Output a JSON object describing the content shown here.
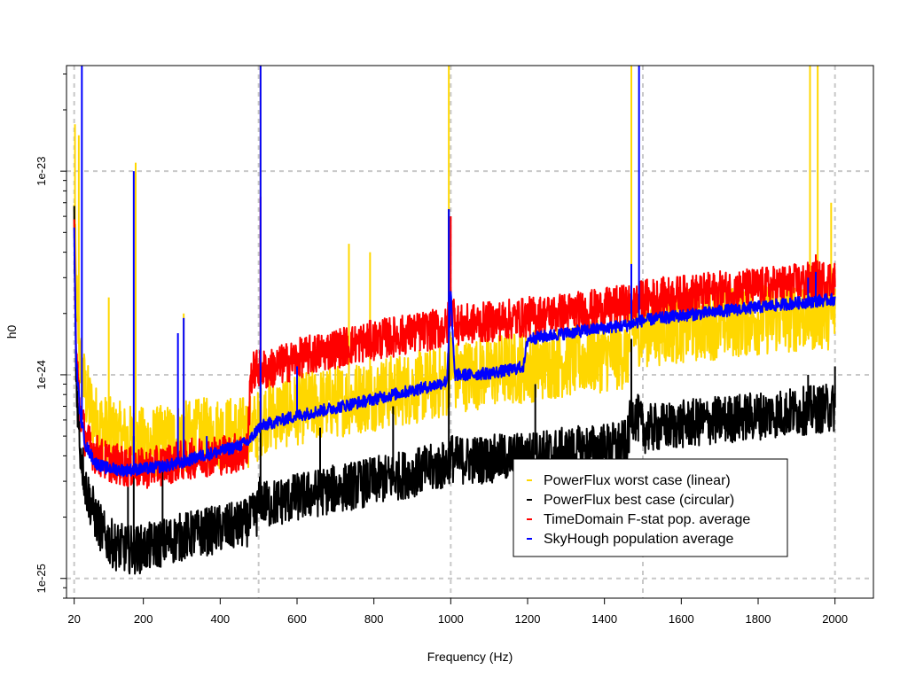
{
  "chart_data": {
    "type": "line",
    "title": "",
    "xlabel": "Frequency (Hz)",
    "ylabel": "h0",
    "xlim": [
      0,
      2100
    ],
    "ylim": [
      8e-26,
      3.3e-23
    ],
    "yscale": "log",
    "grid": true,
    "legend_position": "bottom-right",
    "x_ticks": [
      20,
      200,
      400,
      600,
      800,
      1000,
      1200,
      1400,
      1600,
      1800,
      2000
    ],
    "x_tick_labels": [
      "20",
      "200",
      "400",
      "600",
      "800",
      "1000",
      "1200",
      "1400",
      "1600",
      "1800",
      "2000"
    ],
    "y_ticks": [
      1e-25,
      1e-24,
      1e-23
    ],
    "y_tick_labels": [
      "1e-25",
      "1e-24",
      "1e-23"
    ],
    "x_grid": [
      20,
      500,
      1000,
      1500,
      2000
    ],
    "series": [
      {
        "name": "PowerFlux worst case (linear)",
        "color": "#FFD700",
        "x": [
          20,
          25,
          35,
          50,
          75,
          100,
          150,
          200,
          250,
          300,
          350,
          400,
          450,
          475,
          500,
          510,
          600,
          700,
          800,
          900,
          990,
          1000,
          1010,
          1100,
          1200,
          1300,
          1400,
          1460,
          1470,
          1500,
          1600,
          1700,
          1800,
          1900,
          2000
        ],
        "y": [
          6e-24,
          2.6e-24,
          1.2e-24,
          8e-25,
          6e-25,
          5.3e-25,
          4.8e-25,
          4.6e-25,
          4.7e-25,
          4.9e-25,
          5.1e-25,
          5.2e-25,
          5.2e-25,
          5.3e-25,
          5.6e-25,
          6.2e-25,
          6.8e-25,
          7.4e-25,
          8e-25,
          8.6e-25,
          9.2e-25,
          1.2e-24,
          9.8e-25,
          1.04e-24,
          1.1e-24,
          1.17e-24,
          1.24e-24,
          1.28e-24,
          1.7e-24,
          1.65e-24,
          1.72e-24,
          1.8e-24,
          1.88e-24,
          1.95e-24,
          2.02e-24
        ],
        "spikes": [
          [
            22,
            1.7e-23
          ],
          [
            32,
            1.5e-23
          ],
          [
            110,
            2.4e-24
          ],
          [
            180,
            1.1e-23
          ],
          [
            305,
            2e-24
          ],
          [
            505,
            3.3e-23
          ],
          [
            735,
            4.4e-24
          ],
          [
            790,
            4e-24
          ],
          [
            995,
            3.3e-23
          ],
          [
            1470,
            3.3e-23
          ],
          [
            1935,
            3.3e-23
          ],
          [
            1955,
            3.3e-23
          ],
          [
            1990,
            7e-24
          ]
        ]
      },
      {
        "name": "PowerFlux best case (circular)",
        "color": "#000000",
        "x": [
          20,
          25,
          35,
          50,
          75,
          100,
          125,
          150,
          175,
          200,
          250,
          300,
          350,
          400,
          450,
          475,
          495,
          505,
          520,
          600,
          700,
          800,
          900,
          990,
          1000,
          1010,
          1100,
          1200,
          1300,
          1400,
          1460,
          1470,
          1490,
          1500,
          1600,
          1700,
          1800,
          1900,
          2000
        ],
        "y": [
          5.5e-24,
          1e-24,
          4.5e-25,
          2.8e-25,
          2e-25,
          1.6e-25,
          1.45e-25,
          1.4e-25,
          1.38e-25,
          1.4e-25,
          1.5e-25,
          1.6e-25,
          1.68e-25,
          1.75e-25,
          1.82e-25,
          1.9e-25,
          2.1e-25,
          2.5e-25,
          2.3e-25,
          2.5e-25,
          2.75e-25,
          3e-25,
          3.3e-25,
          3.6e-25,
          4e-25,
          3.8e-25,
          3.85e-25,
          4e-25,
          4.2e-25,
          4.4e-25,
          4.6e-25,
          6.5e-25,
          6e-25,
          5.4e-25,
          5.7e-25,
          6e-25,
          6.3e-25,
          6.6e-25,
          6.9e-25
        ],
        "spikes": [
          [
            160,
            3.2e-25
          ],
          [
            175,
            5e-25
          ],
          [
            250,
            3.5e-25
          ],
          [
            505,
            1.1e-24
          ],
          [
            660,
            5.5e-25
          ],
          [
            850,
            7e-25
          ],
          [
            995,
            6.5e-24
          ],
          [
            1220,
            9e-25
          ],
          [
            1470,
            1.5e-24
          ],
          [
            1930,
            1e-24
          ],
          [
            2000,
            1.1e-24
          ]
        ]
      },
      {
        "name": "TimeDomain F-stat pop. average",
        "color": "#FF0000",
        "x": [
          20,
          25,
          35,
          50,
          75,
          100,
          150,
          200,
          250,
          300,
          350,
          400,
          450,
          470,
          480,
          500,
          520,
          600,
          700,
          800,
          900,
          990,
          1000,
          1020,
          1100,
          1200,
          1300,
          1400,
          1450,
          1480,
          1500,
          1600,
          1700,
          1800,
          1900,
          2000
        ],
        "y": [
          5.5e-24,
          1.3e-24,
          6.8e-25,
          4.8e-25,
          4.1e-25,
          3.8e-25,
          3.55e-25,
          3.45e-25,
          3.6e-25,
          3.8e-25,
          3.95e-25,
          4.05e-25,
          4.15e-25,
          4.2e-25,
          1e-24,
          1.1e-24,
          1.05e-24,
          1.2e-24,
          1.35e-24,
          1.48e-24,
          1.6e-24,
          1.7e-24,
          2.2e-24,
          1.75e-24,
          1.82e-24,
          1.92e-24,
          2.02e-24,
          2.12e-24,
          2.2e-24,
          2.2e-24,
          2.35e-24,
          2.45e-24,
          2.57e-24,
          2.68e-24,
          2.8e-24,
          2.95e-24
        ],
        "spikes": [
          [
            505,
            7.5e-24
          ],
          [
            1000,
            6e-24
          ],
          [
            1490,
            2.8e-24
          ],
          [
            1950,
            3.9e-24
          ]
        ]
      },
      {
        "name": "SkyHough population average",
        "color": "#0000FF",
        "x": [
          20,
          25,
          35,
          50,
          75,
          100,
          150,
          200,
          250,
          300,
          350,
          400,
          450,
          475,
          500,
          520,
          600,
          700,
          800,
          900,
          950,
          990,
          1000,
          1010,
          1050,
          1100,
          1150,
          1190,
          1200,
          1300,
          1400,
          1460,
          1480,
          1500,
          1600,
          1700,
          1800,
          1900,
          2000
        ],
        "y": [
          5e-24,
          1.2e-24,
          6.5e-25,
          4.5e-25,
          3.7e-25,
          3.5e-25,
          3.4e-25,
          3.45e-25,
          3.55e-25,
          3.7e-25,
          4e-25,
          4.2e-25,
          4.5e-25,
          4.7e-25,
          5.5e-25,
          5.7e-25,
          6.3e-25,
          6.9e-25,
          7.6e-25,
          8.4e-25,
          8.8e-25,
          9.3e-25,
          2.5e-24,
          1e-24,
          1e-24,
          1.02e-24,
          1.05e-24,
          1.1e-24,
          1.5e-24,
          1.6e-24,
          1.7e-24,
          1.75e-24,
          1.8e-24,
          1.85e-24,
          1.95e-24,
          2.05e-24,
          2.15e-24,
          2.25e-24,
          2.35e-24
        ],
        "spikes": [
          [
            40,
            3.3e-23
          ],
          [
            175,
            1e-23
          ],
          [
            290,
            1.6e-24
          ],
          [
            305,
            1.9e-24
          ],
          [
            365,
            5e-25
          ],
          [
            505,
            3.3e-23
          ],
          [
            600,
            1.1e-24
          ],
          [
            995,
            6.5e-24
          ],
          [
            1470,
            3.5e-24
          ],
          [
            1490,
            3.3e-23
          ],
          [
            1930,
            3e-24
          ],
          [
            1950,
            3.2e-24
          ]
        ]
      }
    ]
  }
}
